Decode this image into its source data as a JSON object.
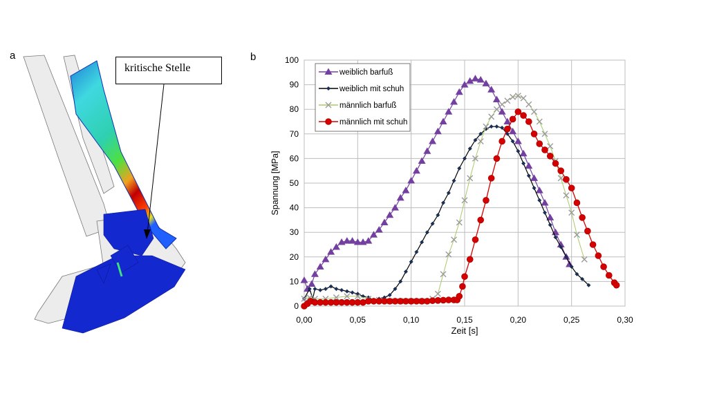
{
  "panel_a": {
    "label": "a",
    "callout": "kritische Stelle"
  },
  "panel_b": {
    "label": "b"
  },
  "colors": {
    "weiblich_barfuss": "#7440a0",
    "weiblich_mit_schuh": "#000000",
    "maennlich_barfuss_line": "#a9c96a",
    "maennlich_barfuss_marker": "#9a9a9a",
    "maennlich_mit_schuh": "#d40000",
    "grid": "#bdbdbd"
  },
  "chart_data": {
    "type": "line",
    "title": "",
    "xlabel": "Zeit [s]",
    "ylabel": "Spannung [MPa]",
    "xlim": [
      0,
      0.3
    ],
    "ylim": [
      0,
      100
    ],
    "x_ticks": [
      "0,00",
      "0,05",
      "0,10",
      "0,15",
      "0,20",
      "0,25",
      "0,30"
    ],
    "y_ticks": [
      "0",
      "10",
      "20",
      "30",
      "40",
      "50",
      "60",
      "70",
      "80",
      "90",
      "100"
    ],
    "grid": true,
    "legend_position": "top-left",
    "series": [
      {
        "name": "weiblich barfuß",
        "marker": "triangle",
        "x": [
          0,
          0.003,
          0.007,
          0.01,
          0.015,
          0.02,
          0.025,
          0.03,
          0.035,
          0.04,
          0.045,
          0.05,
          0.055,
          0.06,
          0.065,
          0.07,
          0.075,
          0.08,
          0.085,
          0.09,
          0.095,
          0.1,
          0.105,
          0.11,
          0.115,
          0.12,
          0.125,
          0.13,
          0.135,
          0.14,
          0.145,
          0.15,
          0.155,
          0.16,
          0.165,
          0.17,
          0.175,
          0.18,
          0.185,
          0.19,
          0.195,
          0.2,
          0.205,
          0.21,
          0.215,
          0.22,
          0.225,
          0.23,
          0.235,
          0.24,
          0.245,
          0.248
        ],
        "y": [
          10.5,
          7,
          9,
          13,
          16,
          19,
          22,
          24,
          26,
          26.5,
          26.5,
          26,
          26,
          26.5,
          29,
          31,
          34,
          37,
          40,
          44,
          47,
          51,
          55,
          59,
          63,
          67,
          71,
          75,
          79,
          83,
          87,
          90,
          91.5,
          92.5,
          92,
          90.5,
          88,
          84,
          79,
          75,
          71,
          67,
          62,
          57,
          52,
          47,
          42,
          36,
          30,
          25,
          20,
          17
        ]
      },
      {
        "name": "weiblich mit schuh",
        "marker": "diamond",
        "x": [
          0,
          0.005,
          0.008,
          0.01,
          0.015,
          0.02,
          0.025,
          0.03,
          0.035,
          0.04,
          0.045,
          0.05,
          0.055,
          0.06,
          0.065,
          0.07,
          0.075,
          0.08,
          0.085,
          0.09,
          0.095,
          0.1,
          0.105,
          0.11,
          0.115,
          0.12,
          0.125,
          0.13,
          0.135,
          0.14,
          0.145,
          0.15,
          0.155,
          0.16,
          0.165,
          0.17,
          0.175,
          0.18,
          0.185,
          0.19,
          0.195,
          0.2,
          0.205,
          0.21,
          0.215,
          0.22,
          0.225,
          0.23,
          0.235,
          0.24,
          0.245,
          0.25,
          0.255,
          0.26,
          0.266
        ],
        "y": [
          3,
          7,
          3,
          7,
          6.5,
          7,
          8,
          7,
          6.5,
          6,
          5.5,
          5,
          4,
          3.5,
          2.5,
          3,
          3.5,
          4.5,
          7,
          10,
          14,
          18,
          22,
          26,
          30,
          33.5,
          37,
          42,
          46,
          51,
          56,
          60,
          64,
          67.5,
          70,
          72,
          73,
          73,
          72.5,
          70,
          67,
          63,
          58,
          53,
          48,
          43,
          38,
          33,
          28,
          24,
          20,
          16,
          13,
          11,
          8.5
        ]
      },
      {
        "name": "männlich barfuß",
        "marker": "cross",
        "x": [
          0,
          0.005,
          0.01,
          0.02,
          0.03,
          0.04,
          0.05,
          0.06,
          0.07,
          0.08,
          0.09,
          0.1,
          0.11,
          0.12,
          0.125,
          0.13,
          0.135,
          0.14,
          0.145,
          0.15,
          0.155,
          0.16,
          0.165,
          0.17,
          0.175,
          0.18,
          0.185,
          0.19,
          0.195,
          0.2,
          0.205,
          0.21,
          0.215,
          0.22,
          0.225,
          0.23,
          0.235,
          0.24,
          0.245,
          0.25,
          0.255,
          0.262
        ],
        "y": [
          3,
          3.5,
          3,
          3,
          3.5,
          4,
          4,
          3,
          2.5,
          2,
          2,
          2,
          2,
          3,
          5,
          13,
          21,
          27,
          34,
          43,
          52,
          60,
          67,
          73,
          77,
          80,
          82,
          83.5,
          85,
          85.5,
          84.5,
          82,
          79,
          75,
          70,
          65,
          59,
          52,
          45,
          38,
          29,
          19
        ]
      },
      {
        "name": "männlich mit schuh",
        "marker": "circle",
        "x": [
          0,
          0.003,
          0.006,
          0.01,
          0.015,
          0.02,
          0.025,
          0.03,
          0.035,
          0.04,
          0.045,
          0.05,
          0.055,
          0.06,
          0.065,
          0.07,
          0.075,
          0.08,
          0.085,
          0.09,
          0.095,
          0.1,
          0.105,
          0.11,
          0.115,
          0.12,
          0.125,
          0.13,
          0.135,
          0.14,
          0.143,
          0.145,
          0.148,
          0.15,
          0.155,
          0.16,
          0.165,
          0.17,
          0.175,
          0.18,
          0.185,
          0.19,
          0.195,
          0.2,
          0.205,
          0.21,
          0.215,
          0.22,
          0.225,
          0.23,
          0.235,
          0.24,
          0.245,
          0.25,
          0.255,
          0.26,
          0.265,
          0.27,
          0.275,
          0.28,
          0.285,
          0.29,
          0.292
        ],
        "y": [
          0,
          1,
          2,
          1.5,
          1.5,
          1.5,
          1.5,
          1.5,
          1.5,
          1.5,
          1.5,
          1.5,
          1.5,
          2,
          2,
          2,
          2,
          2,
          2,
          2,
          2,
          2,
          2,
          2,
          2,
          2.2,
          2.3,
          2.4,
          2.5,
          2.5,
          2.5,
          4,
          8,
          12,
          19,
          27,
          35,
          43,
          52,
          60,
          67,
          72,
          76,
          79,
          77.5,
          75,
          70,
          66,
          63.5,
          61,
          58,
          55,
          51.5,
          48,
          42,
          36,
          30.5,
          25,
          20.5,
          16,
          12.5,
          9.5,
          8.5
        ]
      }
    ]
  }
}
